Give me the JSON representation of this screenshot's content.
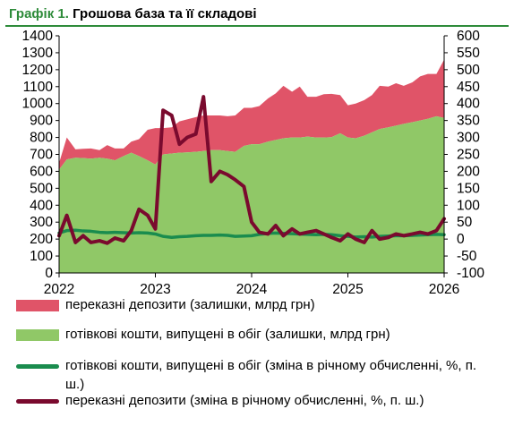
{
  "title": {
    "prefix": "Графік 1.",
    "text": "Грошова база та її складові"
  },
  "legend": [
    {
      "label": "переказні депозити (залишки, млрд грн)",
      "swatch": "area",
      "color": "#e05468"
    },
    {
      "label": "готівкові кошти, випущені в обіг (залишки, млрд грн)",
      "swatch": "area",
      "color": "#90c867"
    },
    {
      "label": "готівкові кошти, випущені в обіг (зміна в річному обчисленні, %, п. ш.)",
      "swatch": "line",
      "color": "#1a8c4e"
    },
    {
      "label": "переказні депозити (зміна в річному обчисленні, %, п. ш.)",
      "swatch": "line",
      "color": "#7a0a2e"
    }
  ],
  "chart_data": {
    "type": "area",
    "x_ticks": [
      "2022",
      "2023",
      "2024",
      "2025",
      "2026"
    ],
    "x_range": [
      2022,
      2026
    ],
    "left_axis": {
      "ticks": [
        0,
        100,
        200,
        300,
        400,
        500,
        600,
        700,
        800,
        900,
        1000,
        1100,
        1200,
        1300,
        1400
      ],
      "range": [
        0,
        1400
      ]
    },
    "right_axis": {
      "ticks": [
        -100,
        -50,
        0,
        50,
        100,
        150,
        200,
        250,
        300,
        350,
        400,
        450,
        500,
        550,
        600
      ],
      "range": [
        -100,
        600
      ]
    },
    "grid": false,
    "series": [
      {
        "name": "готівкові кошти, випущені в обіг (залишки, млрд грн)",
        "kind": "area",
        "axis": "left",
        "color": "#90c867",
        "x": [
          2022.0,
          2022.08,
          2022.17,
          2022.25,
          2022.33,
          2022.42,
          2022.5,
          2022.58,
          2022.67,
          2022.75,
          2022.83,
          2022.92,
          2023.0,
          2023.08,
          2023.17,
          2023.25,
          2023.33,
          2023.42,
          2023.5,
          2023.58,
          2023.67,
          2023.75,
          2023.83,
          2023.92,
          2024.0,
          2024.08,
          2024.17,
          2024.25,
          2024.33,
          2024.42,
          2024.5,
          2024.58,
          2024.67,
          2024.75,
          2024.83,
          2024.92,
          2025.0,
          2025.08,
          2025.17,
          2025.25,
          2025.33,
          2025.42,
          2025.5,
          2025.58,
          2025.67,
          2025.75,
          2025.83,
          2025.92,
          2026.0
        ],
        "values": [
          610,
          670,
          680,
          678,
          675,
          680,
          675,
          665,
          690,
          710,
          690,
          665,
          640,
          700,
          705,
          710,
          712,
          715,
          720,
          725,
          725,
          720,
          715,
          750,
          760,
          760,
          775,
          785,
          795,
          800,
          800,
          805,
          800,
          800,
          802,
          825,
          800,
          795,
          810,
          830,
          850,
          860,
          870,
          880,
          890,
          900,
          910,
          925,
          915
        ]
      },
      {
        "name": "переказні депозити (залишки, млрд грн)",
        "kind": "area",
        "axis": "left",
        "color": "#e05468",
        "stacked_on": 0,
        "x": [
          2022.0,
          2022.08,
          2022.17,
          2022.25,
          2022.33,
          2022.42,
          2022.5,
          2022.58,
          2022.67,
          2022.75,
          2022.83,
          2022.92,
          2023.0,
          2023.08,
          2023.17,
          2023.25,
          2023.33,
          2023.42,
          2023.5,
          2023.58,
          2023.67,
          2023.75,
          2023.83,
          2023.92,
          2024.0,
          2024.08,
          2024.17,
          2024.25,
          2024.33,
          2024.42,
          2024.5,
          2024.58,
          2024.67,
          2024.75,
          2024.83,
          2024.92,
          2025.0,
          2025.08,
          2025.17,
          2025.25,
          2025.33,
          2025.42,
          2025.5,
          2025.58,
          2025.67,
          2025.75,
          2025.83,
          2025.92,
          2026.0
        ],
        "values": [
          40,
          130,
          50,
          55,
          60,
          45,
          80,
          70,
          45,
          65,
          100,
          180,
          215,
          155,
          155,
          185,
          195,
          205,
          210,
          205,
          205,
          205,
          215,
          225,
          215,
          225,
          255,
          275,
          310,
          270,
          300,
          235,
          240,
          255,
          255,
          225,
          190,
          205,
          210,
          220,
          255,
          240,
          250,
          225,
          235,
          260,
          265,
          250,
          345
        ]
      },
      {
        "name": "готівкові кошти, випущені в обіг (зміна в річному обчисленні, %, п. ш.)",
        "kind": "line",
        "axis": "right",
        "color": "#1a8c4e",
        "x": [
          2022.0,
          2022.08,
          2022.17,
          2022.25,
          2022.33,
          2022.42,
          2022.5,
          2022.58,
          2022.67,
          2022.75,
          2022.83,
          2022.92,
          2023.0,
          2023.08,
          2023.17,
          2023.25,
          2023.33,
          2023.42,
          2023.5,
          2023.58,
          2023.67,
          2023.75,
          2023.83,
          2023.92,
          2024.0,
          2024.08,
          2024.17,
          2024.25,
          2024.33,
          2024.42,
          2024.5,
          2024.58,
          2024.67,
          2024.75,
          2024.83,
          2024.92,
          2025.0,
          2025.08,
          2025.17,
          2025.25,
          2025.33,
          2025.42,
          2025.5,
          2025.58,
          2025.67,
          2025.75,
          2025.83,
          2025.92,
          2026.0
        ],
        "values": [
          18,
          25,
          26,
          24,
          23,
          20,
          19,
          20,
          19,
          18,
          19,
          18,
          15,
          8,
          5,
          7,
          8,
          10,
          11,
          11,
          12,
          11,
          8,
          9,
          10,
          14,
          17,
          18,
          17,
          16,
          15,
          14,
          13,
          14,
          13,
          10,
          8,
          6,
          7,
          6,
          8,
          9,
          10,
          10,
          11,
          12,
          13,
          14,
          13
        ]
      },
      {
        "name": "переказні депозити (зміна в річному обчисленні, %, п. ш.)",
        "kind": "line",
        "axis": "right",
        "color": "#7a0a2e",
        "x": [
          2022.0,
          2022.08,
          2022.17,
          2022.25,
          2022.33,
          2022.42,
          2022.5,
          2022.58,
          2022.67,
          2022.75,
          2022.83,
          2022.92,
          2023.0,
          2023.08,
          2023.17,
          2023.25,
          2023.33,
          2023.42,
          2023.5,
          2023.58,
          2023.67,
          2023.75,
          2023.83,
          2023.92,
          2024.0,
          2024.08,
          2024.17,
          2024.25,
          2024.33,
          2024.42,
          2024.5,
          2024.58,
          2024.67,
          2024.75,
          2024.83,
          2024.92,
          2025.0,
          2025.08,
          2025.17,
          2025.25,
          2025.33,
          2025.42,
          2025.5,
          2025.58,
          2025.67,
          2025.75,
          2025.83,
          2025.92,
          2026.0
        ],
        "values": [
          10,
          70,
          -10,
          10,
          -10,
          -5,
          -12,
          3,
          -5,
          25,
          88,
          70,
          30,
          380,
          365,
          280,
          300,
          310,
          420,
          170,
          200,
          190,
          175,
          155,
          50,
          20,
          15,
          40,
          10,
          30,
          15,
          20,
          25,
          15,
          5,
          -5,
          15,
          0,
          -10,
          25,
          0,
          5,
          15,
          10,
          15,
          20,
          15,
          25,
          60
        ]
      }
    ]
  }
}
